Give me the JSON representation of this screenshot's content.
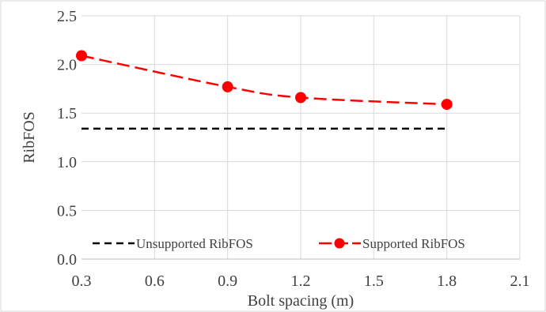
{
  "chart_data": {
    "type": "line",
    "title": "",
    "xlabel": "Bolt spacing (m)",
    "ylabel": "RibFOS",
    "xlim": [
      0.3,
      2.1
    ],
    "ylim": [
      0,
      2.5
    ],
    "xticks": [
      "0.3",
      "0.6",
      "0.9",
      "1.2",
      "1.5",
      "1.8",
      "2.1"
    ],
    "yticks": [
      "0.0",
      "0.5",
      "1.0",
      "1.5",
      "2.0",
      "2.5"
    ],
    "grid": true,
    "legend_position": "bottom",
    "series": [
      {
        "name": "Unsupported RibFOS",
        "x": [
          0.3,
          1.8
        ],
        "y": [
          1.34,
          1.34
        ],
        "color": "#000000",
        "style": "dashed",
        "marker": "none"
      },
      {
        "name": "Supported RibFOS",
        "x": [
          0.3,
          0.9,
          1.2,
          1.8
        ],
        "y": [
          2.09,
          1.77,
          1.66,
          1.59
        ],
        "color": "#ff0000",
        "style": "dashed",
        "marker": "circle"
      }
    ]
  }
}
